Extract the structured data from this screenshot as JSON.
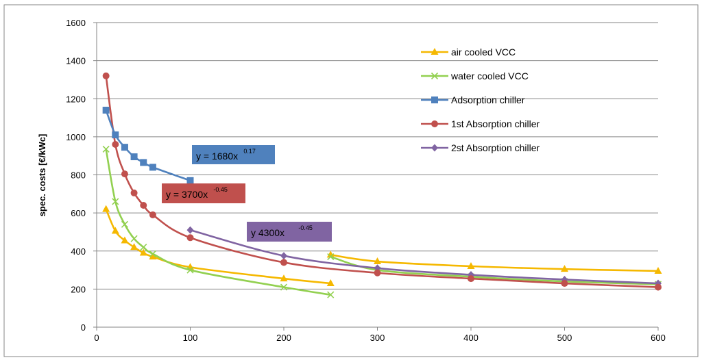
{
  "chart_data": {
    "type": "line",
    "xlabel": "",
    "ylabel": "spec. costs [€/kWc]",
    "xlim": [
      0,
      600
    ],
    "ylim": [
      0,
      1600
    ],
    "x_ticks": [
      0,
      100,
      200,
      300,
      400,
      500,
      600
    ],
    "y_ticks": [
      0,
      200,
      400,
      600,
      800,
      1000,
      1200,
      1400,
      1600
    ],
    "x_tick_labels": [
      "0",
      "100",
      "200",
      "300",
      "400",
      "500",
      "600"
    ],
    "y_tick_labels": [
      "0",
      "200",
      "400",
      "600",
      "800",
      "1000",
      "1200",
      "1400",
      "1600"
    ],
    "grid": "horizontal",
    "legend_position": "top-right",
    "series": [
      {
        "name": "air cooled VCC",
        "color": "#f5b800",
        "marker": "triangle",
        "segments": [
          {
            "x": [
              10,
              20,
              30,
              40,
              50,
              60,
              100,
              200,
              250
            ],
            "y": [
              620,
              505,
              455,
              420,
              390,
              370,
              315,
              255,
              230
            ]
          },
          {
            "x": [
              250,
              300,
              400,
              500,
              600
            ],
            "y": [
              380,
              345,
              320,
              305,
              295
            ]
          }
        ]
      },
      {
        "name": "water cooled VCC",
        "color": "#92d050",
        "marker": "x",
        "segments": [
          {
            "x": [
              10,
              20,
              30,
              40,
              50,
              60,
              100,
              200,
              250
            ],
            "y": [
              935,
              660,
              540,
              465,
              420,
              385,
              300,
              210,
              170
            ]
          },
          {
            "x": [
              250,
              300,
              400,
              500,
              600
            ],
            "y": [
              370,
              300,
              265,
              240,
              225
            ]
          }
        ]
      },
      {
        "name": "Adsorption chiller",
        "color": "#4f81bd",
        "marker": "square",
        "segments": [
          {
            "x": [
              10,
              20,
              30,
              40,
              50,
              60,
              100
            ],
            "y": [
              1140,
              1010,
              945,
              895,
              865,
              840,
              770
            ]
          }
        ]
      },
      {
        "name": "1st Absorption chiller",
        "color": "#c0504d",
        "marker": "circle",
        "segments": [
          {
            "x": [
              10,
              20,
              30,
              40,
              50,
              60,
              100,
              200,
              300,
              400,
              500,
              600
            ],
            "y": [
              1320,
              960,
              805,
              705,
              640,
              590,
              470,
              340,
              285,
              255,
              230,
              210
            ]
          }
        ]
      },
      {
        "name": "2st Absorption chiller",
        "color": "#8064a2",
        "marker": "diamond",
        "segments": [
          {
            "x": [
              100,
              200,
              300,
              400,
              500,
              600
            ],
            "y": [
              510,
              375,
              310,
              275,
              250,
              230
            ]
          }
        ]
      }
    ],
    "annotations": [
      {
        "id": "adsorption-eq",
        "label": "y = 1680x",
        "exponent": "-0.17",
        "exponent_display": "0.17",
        "box_color": "#4f81bd"
      },
      {
        "id": "absorption1-eq",
        "label": "y = 3700x",
        "exponent": "-0.45",
        "exponent_display": "-0.45",
        "box_color": "#c0504d"
      },
      {
        "id": "absorption2-eq",
        "label": "y   4300x",
        "exponent": "-0.45",
        "exponent_display": "-0.45",
        "box_color": "#8064a2"
      }
    ]
  }
}
